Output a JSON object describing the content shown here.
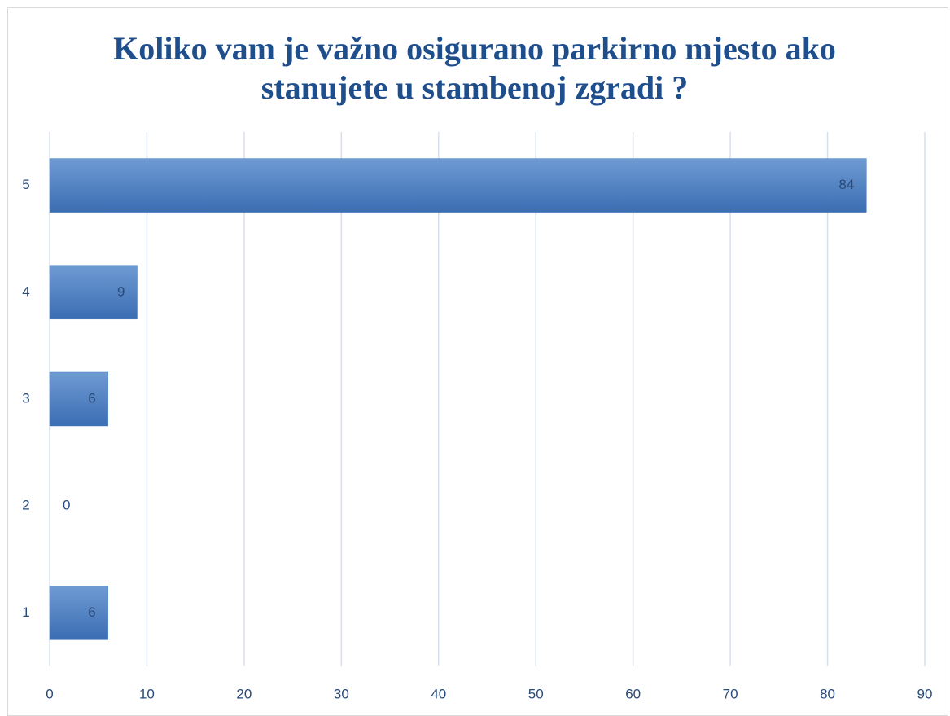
{
  "chart_data": {
    "type": "hbar",
    "title": "Koliko vam je važno osigurano parkirno mjesto ako stanujete u stambenoj zgradi ?",
    "categories": [
      "1",
      "2",
      "3",
      "4",
      "5"
    ],
    "values": [
      6,
      0,
      6,
      9,
      84
    ],
    "color": "#4a7cc0",
    "xlim": [
      0,
      90
    ],
    "xticks": [
      0,
      10,
      20,
      30,
      40,
      50,
      60,
      70,
      80,
      90
    ],
    "grid": true
  }
}
